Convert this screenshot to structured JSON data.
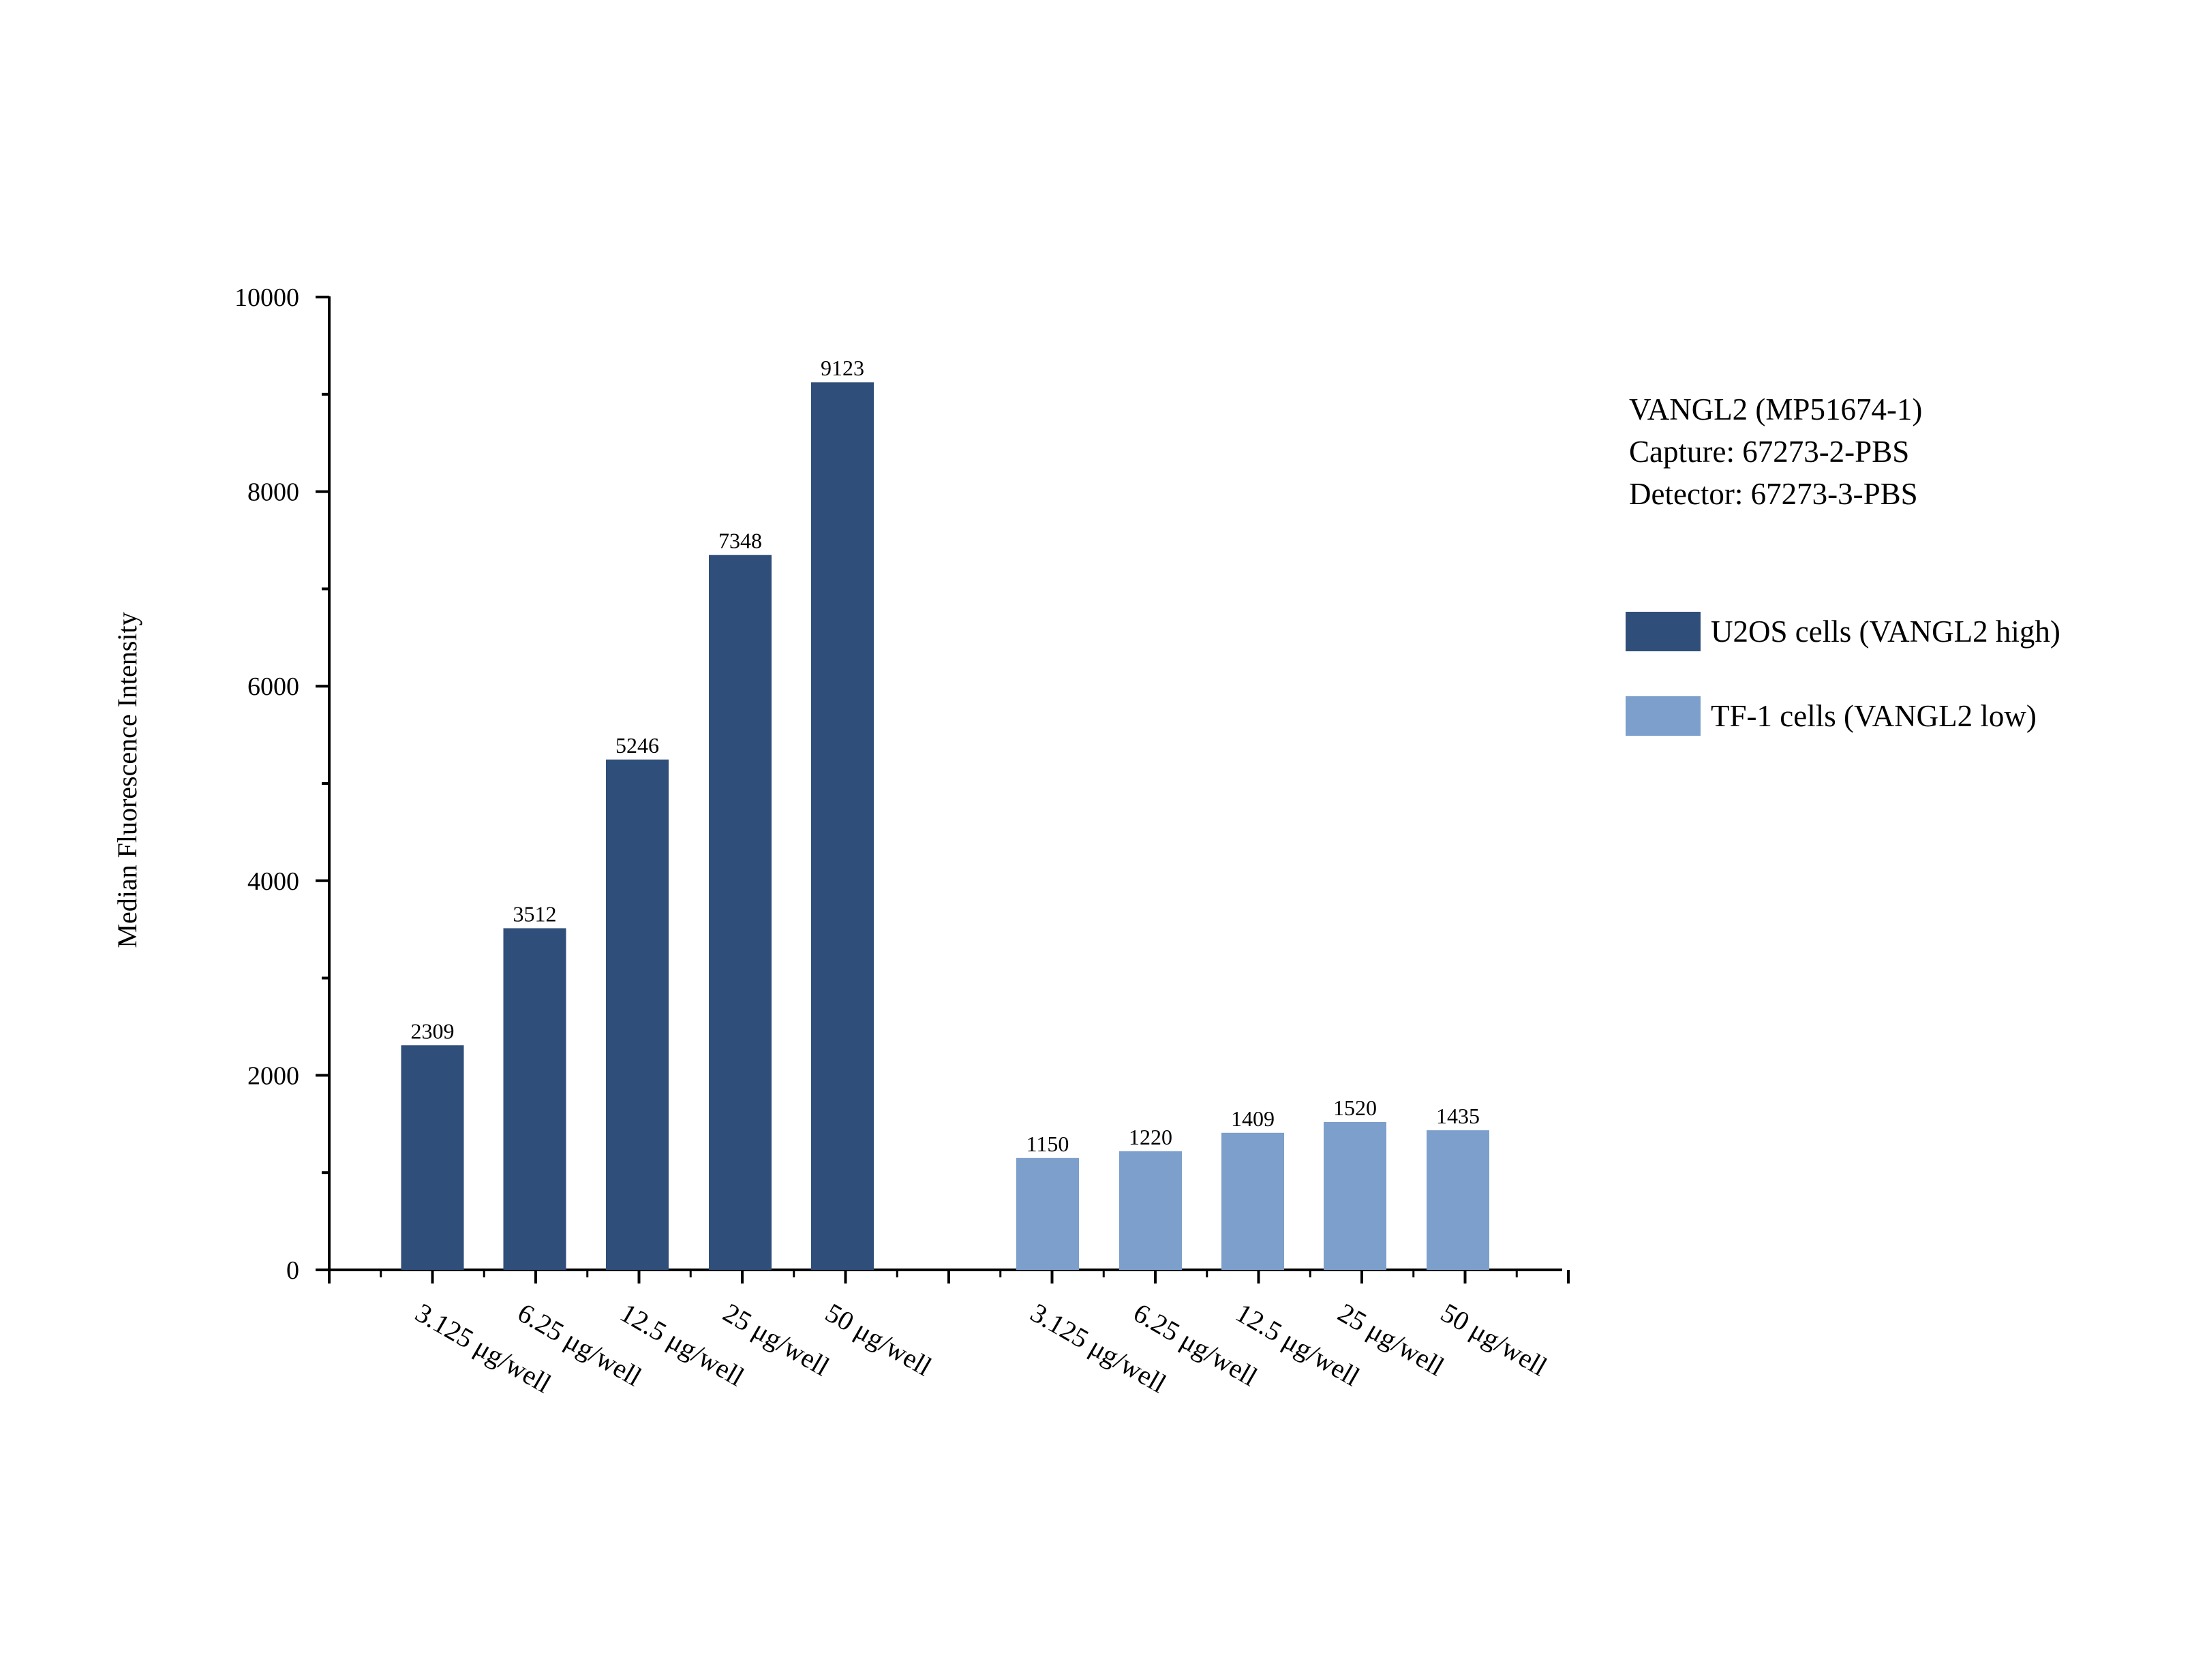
{
  "chart_data": {
    "type": "bar",
    "info_lines": [
      "VANGL2 (MP51674-1)",
      "Capture: 67273-2-PBS",
      "Detector: 67273-3-PBS"
    ],
    "ylabel": "Median Fluorescence Intensity",
    "xlabel": "",
    "ylim": [
      0,
      10000
    ],
    "yticks": [
      "0",
      "2000",
      "4000",
      "6000",
      "8000",
      "10000"
    ],
    "grid": false,
    "legend_position": "right",
    "series": [
      {
        "name": "U2OS cells (VANGL2 high)",
        "color": "#2f4e79",
        "categories": [
          "3.125 μg/well",
          "6.25 μg/well",
          "12.5 μg/well",
          "25 μg/well",
          "50 μg/well"
        ],
        "values": [
          2309,
          3512,
          5246,
          7348,
          9123
        ],
        "labels": [
          "2309",
          "3512",
          "5246",
          "7348",
          "9123"
        ]
      },
      {
        "name": "TF-1 cells (VANGL2 low)",
        "color": "#7c9fcc",
        "categories": [
          "3.125 μg/well",
          "6.25 μg/well",
          "12.5 μg/well",
          "25 μg/well",
          "50 μg/well"
        ],
        "values": [
          1150,
          1220,
          1409,
          1520,
          1435
        ],
        "labels": [
          "1150",
          "1220",
          "1409",
          "1520",
          "1435"
        ]
      }
    ]
  }
}
